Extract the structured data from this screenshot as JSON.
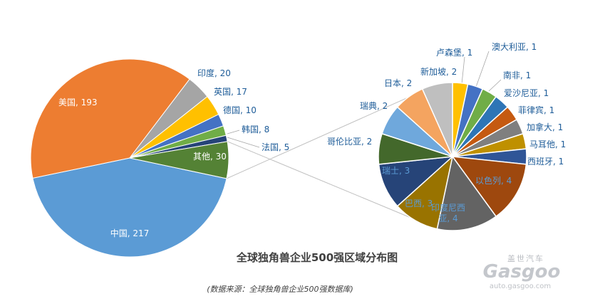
{
  "chart_data": {
    "type": "pie-of-pie",
    "title": "全球独角兽企业500强区域分布图",
    "source": "(数据来源：全球独角兽企业500强数据库)",
    "main_pie": {
      "slices": [
        {
          "label": "中国",
          "value": 217,
          "color": "#5b9bd5",
          "text": "中国, 217",
          "label_inside": true,
          "label_color": "#ffffff"
        },
        {
          "label": "美国",
          "value": 193,
          "color": "#ed7d31",
          "text": "美国, 193",
          "label_inside": true,
          "label_color": "#ffffff"
        },
        {
          "label": "印度",
          "value": 20,
          "color": "#a5a5a5",
          "text": "印度, 20",
          "label_inside": false,
          "label_color": "#1f5d99"
        },
        {
          "label": "英国",
          "value": 17,
          "color": "#ffc000",
          "text": "英国, 17",
          "label_inside": false,
          "label_color": "#1f5d99"
        },
        {
          "label": "德国",
          "value": 10,
          "color": "#4472c4",
          "text": "德国, 10",
          "label_inside": false,
          "label_color": "#1f5d99"
        },
        {
          "label": "韩国",
          "value": 8,
          "color": "#70ad47",
          "text": "韩国, 8",
          "label_inside": false,
          "label_color": "#1f5d99"
        },
        {
          "label": "法国",
          "value": 5,
          "color": "#264478",
          "text": "法国, 5",
          "label_inside": false,
          "label_color": "#1f5d99"
        },
        {
          "label": "其他",
          "value": 30,
          "color": "#548235",
          "text": "其他, 30",
          "label_inside": true,
          "label_color": "#ffffff"
        }
      ]
    },
    "secondary_pie": {
      "slices": [
        {
          "label": "卢森堡",
          "value": 1,
          "color": "#ffc000",
          "text": "卢森堡, 1",
          "label_inside": false,
          "label_color": "#1f5d99"
        },
        {
          "label": "澳大利亚",
          "value": 1,
          "color": "#4472c4",
          "text": "澳大利亚, 1",
          "label_inside": false,
          "label_color": "#1f5d99"
        },
        {
          "label": "南非",
          "value": 1,
          "color": "#70ad47",
          "text": "南非, 1",
          "label_inside": false,
          "label_color": "#1f5d99"
        },
        {
          "label": "爱沙尼亚",
          "value": 1,
          "color": "#2e75b6",
          "text": "爱沙尼亚, 1",
          "label_inside": false,
          "label_color": "#1f5d99"
        },
        {
          "label": "菲律宾",
          "value": 1,
          "color": "#c55a11",
          "text": "菲律宾, 1",
          "label_inside": false,
          "label_color": "#1f5d99"
        },
        {
          "label": "加拿大",
          "value": 1,
          "color": "#7f7f7f",
          "text": "加拿大, 1",
          "label_inside": false,
          "label_color": "#1f5d99"
        },
        {
          "label": "马耳他",
          "value": 1,
          "color": "#bf9000",
          "text": "马耳他, 1",
          "label_inside": false,
          "label_color": "#1f5d99"
        },
        {
          "label": "西班牙",
          "value": 1,
          "color": "#2f5597",
          "text": "西班牙, 1",
          "label_inside": false,
          "label_color": "#1f5d99"
        },
        {
          "label": "以色列",
          "value": 4,
          "color": "#9e480e",
          "text": "以色列, 4",
          "label_inside": true,
          "label_color": "#5b9bd5"
        },
        {
          "label": "印度尼西亚",
          "value": 4,
          "color": "#636363",
          "text_lines": [
            "印度尼西",
            "亚, 4"
          ],
          "label_inside": true,
          "label_color": "#5b9bd5"
        },
        {
          "label": "巴西",
          "value": 3,
          "color": "#997300",
          "text": "巴西, 3",
          "label_inside": true,
          "label_color": "#5b9bd5"
        },
        {
          "label": "瑞士",
          "value": 3,
          "color": "#264478",
          "text": "瑞士, 3",
          "label_inside": true,
          "label_color": "#5b9bd5"
        },
        {
          "label": "哥伦比亚",
          "value": 2,
          "color": "#43682b",
          "text": "哥伦比亚, 2",
          "label_inside": false,
          "label_color": "#1f5d99"
        },
        {
          "label": "瑞典",
          "value": 2,
          "color": "#6fa8dc",
          "text": "瑞典, 2",
          "label_inside": false,
          "label_color": "#1f5d99"
        },
        {
          "label": "日本",
          "value": 2,
          "color": "#f4a460",
          "text": "日本, 2",
          "label_inside": false,
          "label_color": "#1f5d99"
        },
        {
          "label": "新加坡",
          "value": 2,
          "color": "#bfbfbf",
          "text": "新加坡, 2",
          "label_inside": false,
          "label_color": "#1f5d99"
        }
      ]
    },
    "legend": "none",
    "grid": false
  },
  "watermark": {
    "brand_cn": "盖世汽车",
    "logo": "Gasgoo",
    "url": "auto.gasgoo.com"
  }
}
